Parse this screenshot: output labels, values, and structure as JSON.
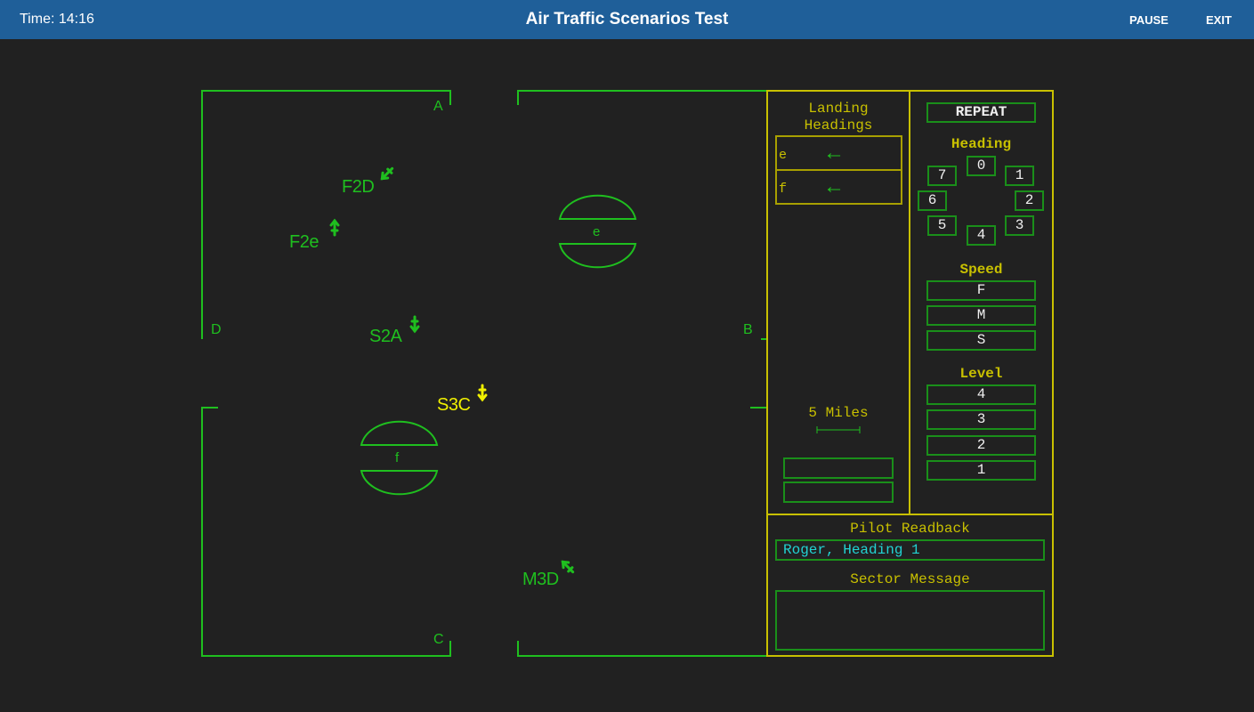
{
  "header": {
    "time": "Time: 14:16",
    "title": "Air Traffic Scenarios Test",
    "pause": "PAUSE",
    "exit": "EXIT"
  },
  "sector": {
    "exits": [
      "A",
      "B",
      "C",
      "D"
    ],
    "airports": [
      "e",
      "f"
    ]
  },
  "aircraft": [
    {
      "callsign": "F2D",
      "heading_icon": "arrow-down-left",
      "color": "#1fbf1f"
    },
    {
      "callsign": "F2e",
      "heading_icon": "arrow-up",
      "color": "#1fbf1f"
    },
    {
      "callsign": "S2A",
      "heading_icon": "arrow-down",
      "color": "#1fbf1f"
    },
    {
      "callsign": "S3C",
      "heading_icon": "arrow-down",
      "color": "#f0f000"
    },
    {
      "callsign": "M3D",
      "heading_icon": "arrow-up-left",
      "color": "#1fbf1f"
    }
  ],
  "landing": {
    "title1": "Landing",
    "title2": "Headings",
    "rows": [
      {
        "airport": "e",
        "direction": "arrow-left"
      },
      {
        "airport": "f",
        "direction": "arrow-left"
      }
    ]
  },
  "scale": {
    "label": "5 Miles"
  },
  "controls": {
    "repeat": "REPEAT",
    "heading_title": "Heading",
    "headings": [
      "0",
      "1",
      "2",
      "3",
      "4",
      "5",
      "6",
      "7"
    ],
    "speed_title": "Speed",
    "speeds": [
      "F",
      "M",
      "S"
    ],
    "level_title": "Level",
    "levels": [
      "4",
      "3",
      "2",
      "1"
    ]
  },
  "readback": {
    "title": "Pilot Readback",
    "text": "Roger, Heading 1",
    "sector_title": "Sector Message",
    "sector_text": ""
  },
  "colors": {
    "radar": "#1fbf1f",
    "panel": "#c8c000",
    "selected": "#f0f000",
    "readback": "#22d3d3",
    "header": "#1f5f99"
  }
}
